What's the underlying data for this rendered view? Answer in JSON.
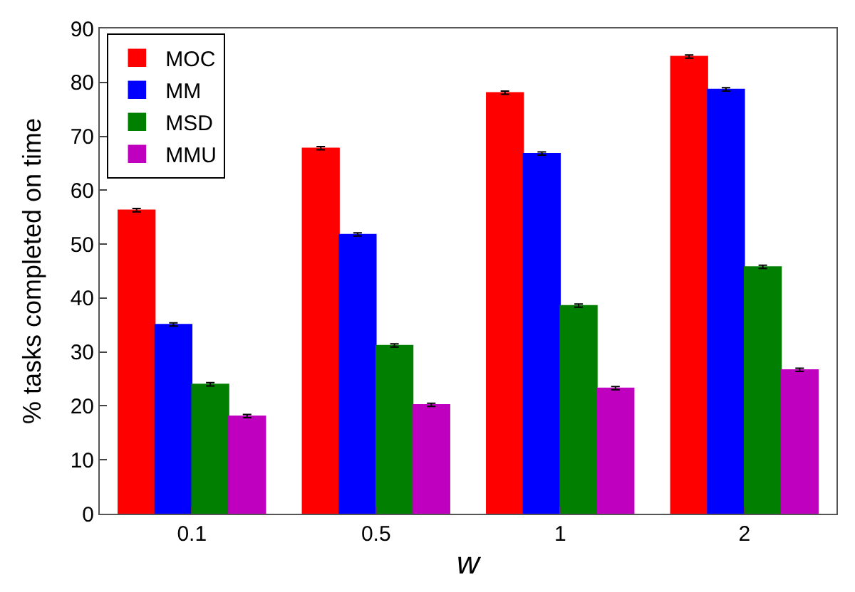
{
  "chart_data": {
    "type": "bar",
    "xlabel": "w",
    "ylabel": "% tasks completed on time",
    "categories": [
      "0.1",
      "0.5",
      "1",
      "2"
    ],
    "series": [
      {
        "name": "MOC",
        "color": "#ff0000",
        "values": [
          56.3,
          67.8,
          78.1,
          84.8
        ],
        "errors": [
          0.3,
          0.3,
          0.3,
          0.3
        ]
      },
      {
        "name": "MM",
        "color": "#0000ff",
        "values": [
          35.1,
          51.8,
          66.8,
          78.7
        ],
        "errors": [
          0.3,
          0.3,
          0.3,
          0.3
        ]
      },
      {
        "name": "MSD",
        "color": "#007f00",
        "values": [
          24.0,
          31.2,
          38.6,
          45.8
        ],
        "errors": [
          0.3,
          0.3,
          0.3,
          0.3
        ]
      },
      {
        "name": "MMU",
        "color": "#bf00bf",
        "values": [
          18.1,
          20.2,
          23.3,
          26.7
        ],
        "errors": [
          0.3,
          0.3,
          0.3,
          0.3
        ]
      }
    ],
    "ylim": [
      0,
      90
    ],
    "yticks": [
      0,
      10,
      20,
      30,
      40,
      50,
      60,
      70,
      80,
      90
    ],
    "legend": "top left"
  }
}
